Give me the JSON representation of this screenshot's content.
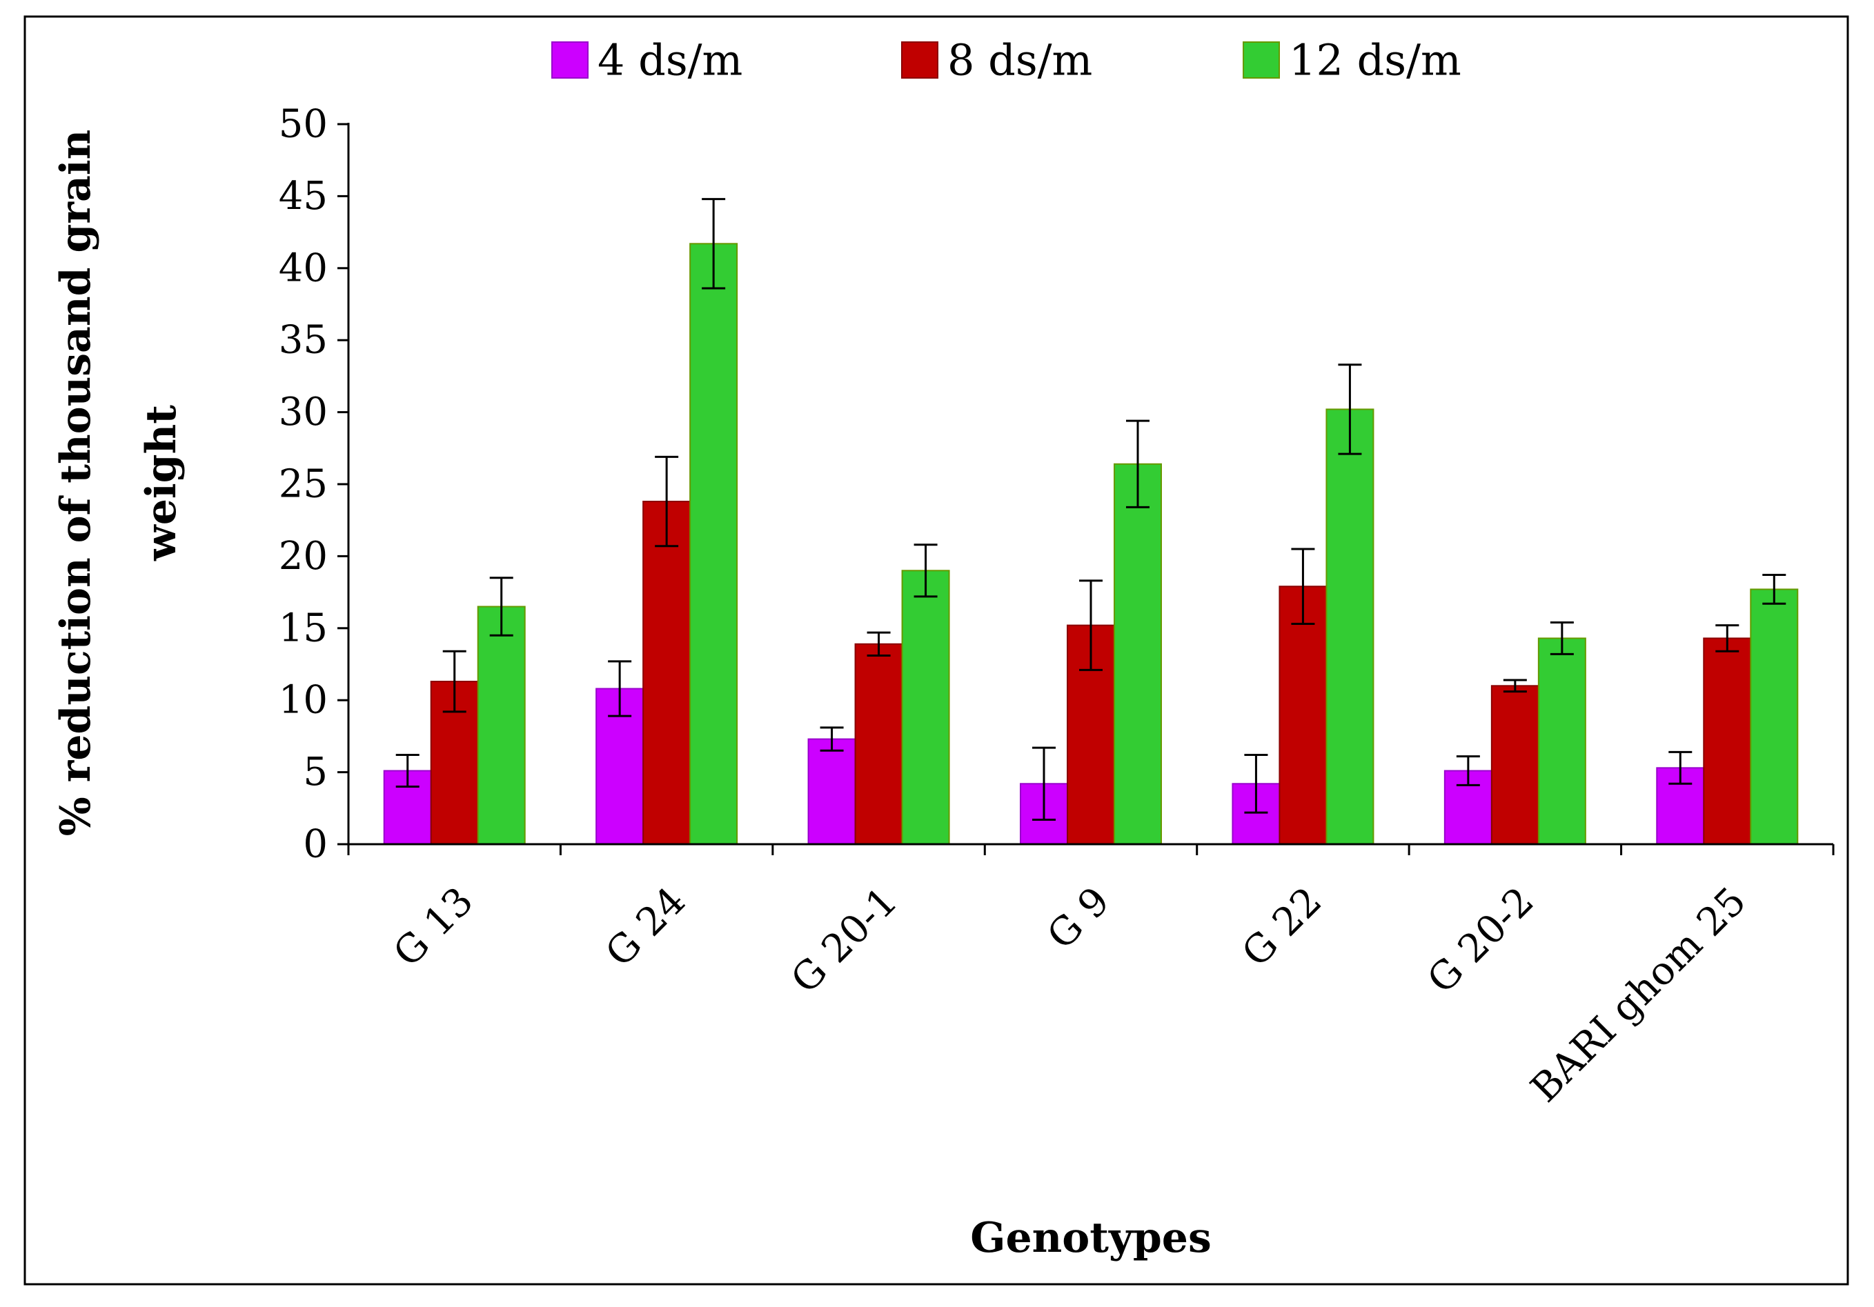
{
  "chart_data": {
    "type": "bar",
    "title": "",
    "xlabel": "Genotypes",
    "ylabel": "% reduction of thousand grain weight",
    "ylabel_lines": [
      "% reduction of thousand grain",
      "weight"
    ],
    "ylim": [
      0,
      50
    ],
    "yticks": [
      "0",
      "5",
      "10",
      "15",
      "20",
      "25",
      "30",
      "35",
      "40",
      "45",
      "50"
    ],
    "yticks_values": [
      0,
      5,
      10,
      15,
      20,
      25,
      30,
      35,
      40,
      45,
      50
    ],
    "categories": [
      "G 13",
      "G 24",
      "G 20-1",
      "G 9",
      "G 22",
      "G 20-2",
      "BARI ghom 25"
    ],
    "legend_position": "top-center",
    "series": [
      {
        "name": "4 ds/m",
        "color": "#cc00ff",
        "edge": "#9900cc",
        "values": [
          5.1,
          10.8,
          7.3,
          4.2,
          4.2,
          5.1,
          5.3
        ],
        "errors": [
          1.1,
          1.9,
          0.8,
          2.5,
          2.0,
          1.0,
          1.1
        ]
      },
      {
        "name": "8 ds/m",
        "color": "#c00000",
        "edge": "#8b0000",
        "values": [
          11.3,
          23.8,
          13.9,
          15.2,
          17.9,
          11.0,
          14.3
        ],
        "errors": [
          2.1,
          3.1,
          0.8,
          3.1,
          2.6,
          0.4,
          0.9
        ]
      },
      {
        "name": "12 ds/m",
        "color": "#33cc33",
        "edge": "#669900",
        "values": [
          16.5,
          41.7,
          19.0,
          26.4,
          30.2,
          14.3,
          17.7
        ],
        "errors": [
          2.0,
          3.1,
          1.8,
          3.0,
          3.1,
          1.1,
          1.0
        ]
      }
    ]
  }
}
